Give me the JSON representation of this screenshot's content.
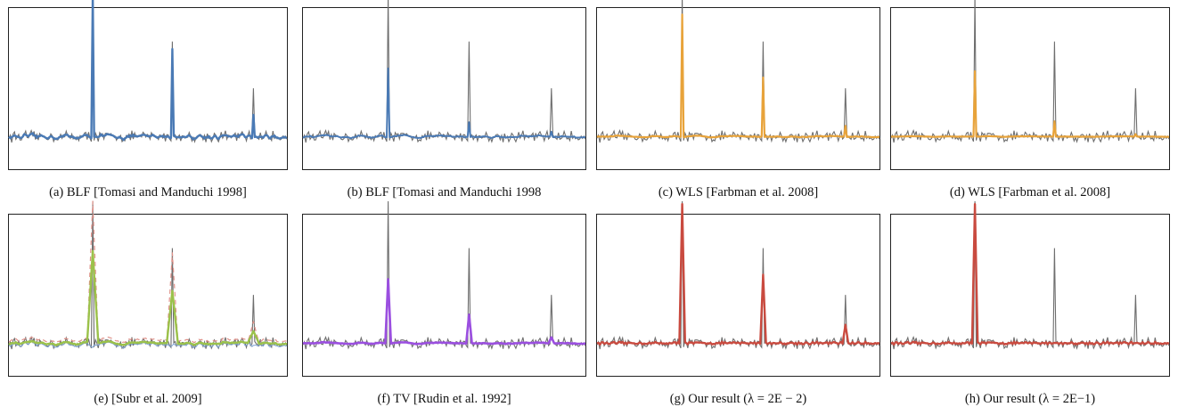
{
  "figure": {
    "panels": [
      {
        "caption": "(a) BLF [Tomasi and Manduchi 1998]",
        "method": "blf_narrow",
        "color": "#4a7ab5"
      },
      {
        "caption": "(b) BLF [Tomasi and Manduchi 1998",
        "method": "blf_wide",
        "color": "#4a7ab5"
      },
      {
        "caption": "(c) WLS [Farbman et al. 2008]",
        "method": "wls_narrow",
        "color": "#e8a33a"
      },
      {
        "caption": "(d) WLS [Farbman et al. 2008]",
        "method": "wls_wide",
        "color": "#e8a33a"
      },
      {
        "caption": "(e) [Subr et al. 2009]",
        "method": "subr",
        "color": "#9bc24a"
      },
      {
        "caption": "(f) TV [Rudin et al. 1992]",
        "method": "tv",
        "color": "#9b4fe0"
      },
      {
        "caption": "(g) Our result (λ = 2E − 2)",
        "method": "ours_low",
        "color": "#c94a3f"
      },
      {
        "caption": "(h) Our result (λ = 2E−1)",
        "method": "ours_high",
        "color": "#c94a3f"
      }
    ]
  },
  "chart_data": {
    "type": "line",
    "colors": {
      "input": "#6e6e6e",
      "blf": "#4a7ab5",
      "wls": "#e8a33a",
      "subr": "#9bc24a",
      "subr_envelope": "#e0928a",
      "subr_lower": "#7aa0d0",
      "tv": "#9b4fe0",
      "ours": "#c94a3f"
    },
    "signal": {
      "samples": 200,
      "spike_positions": [
        0.3,
        0.59,
        0.88
      ],
      "spike_heights": [
        1.0,
        0.67,
        0.34
      ],
      "ylim": [
        0,
        1
      ]
    }
  }
}
